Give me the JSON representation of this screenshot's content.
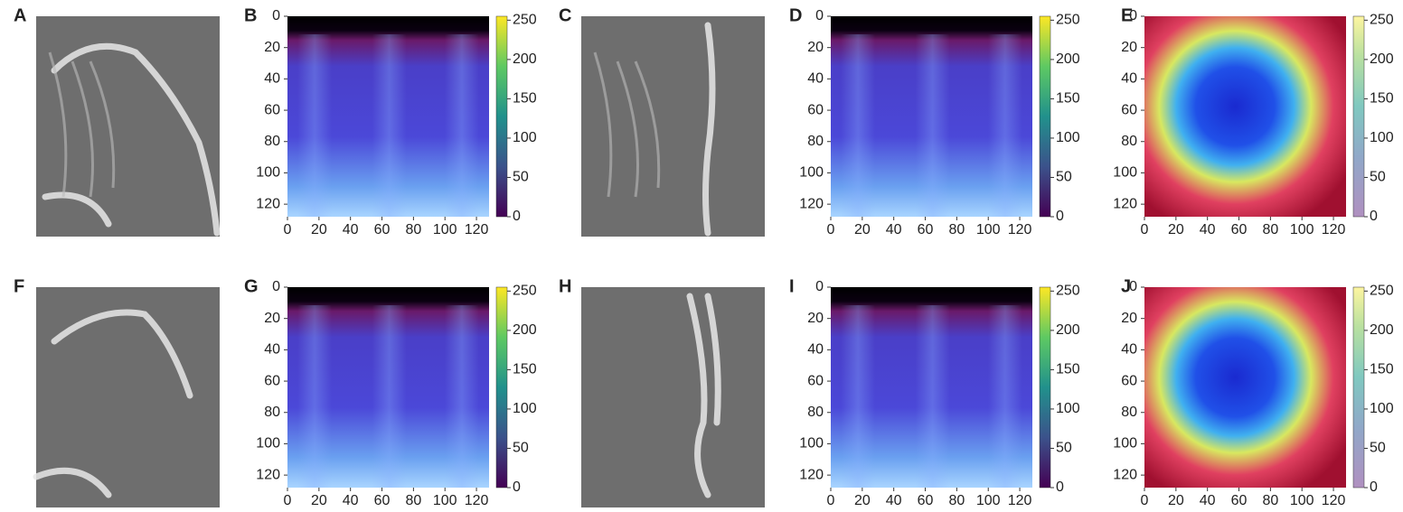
{
  "panels": [
    {
      "label": "A",
      "kind": "image"
    },
    {
      "label": "B",
      "kind": "spectrogram"
    },
    {
      "label": "C",
      "kind": "image"
    },
    {
      "label": "D",
      "kind": "spectrogram"
    },
    {
      "label": "E",
      "kind": "overlay"
    },
    {
      "label": "F",
      "kind": "image"
    },
    {
      "label": "G",
      "kind": "spectrogram"
    },
    {
      "label": "H",
      "kind": "image"
    },
    {
      "label": "I",
      "kind": "spectrogram"
    },
    {
      "label": "J",
      "kind": "overlay"
    }
  ],
  "axes": {
    "xlim": [
      0,
      128
    ],
    "ylim": [
      0,
      128
    ],
    "xticks": [
      0,
      20,
      40,
      60,
      80,
      100,
      120
    ],
    "yticks": [
      0,
      20,
      40,
      60,
      80,
      100,
      120
    ],
    "colorbar": {
      "lim": [
        0,
        255
      ],
      "ticks": [
        0,
        50,
        100,
        150,
        200,
        250
      ]
    }
  }
}
